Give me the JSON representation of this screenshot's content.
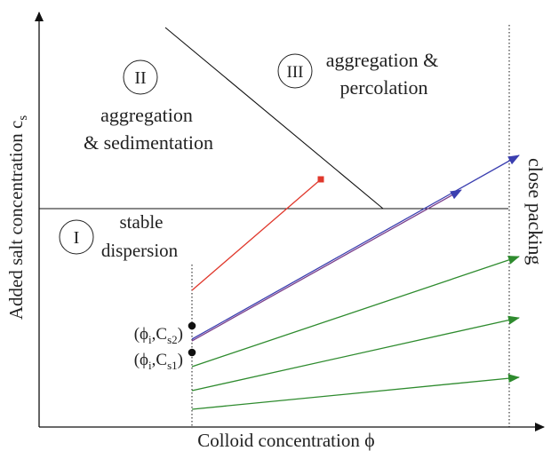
{
  "axes": {
    "xlabel": "Colloid concentration",
    "xsymbol": "ϕ",
    "ylabel": "Added salt concentration c",
    "ysub": "s"
  },
  "regions": {
    "one": {
      "numeral": "I",
      "line1": "stable",
      "line2": "dispersion"
    },
    "two": {
      "numeral": "II",
      "line1": "aggregation",
      "line2": "& sedimentation"
    },
    "three": {
      "numeral": "III",
      "line1": "aggregation &",
      "line2": "percolation"
    }
  },
  "boundary_label": "close packing",
  "points": {
    "p2": {
      "phi": "ϕ",
      "sub_i": "i",
      "c": "C",
      "sub": "s2"
    },
    "p1": {
      "phi": "ϕ",
      "sub_i": "i",
      "c": "C",
      "sub": "s1"
    }
  },
  "colors": {
    "axis": "#111111",
    "red": "#e0382c",
    "blue": "#3b3fb0",
    "purple": "#7a3f8c",
    "green": "#2e8b2e"
  }
}
